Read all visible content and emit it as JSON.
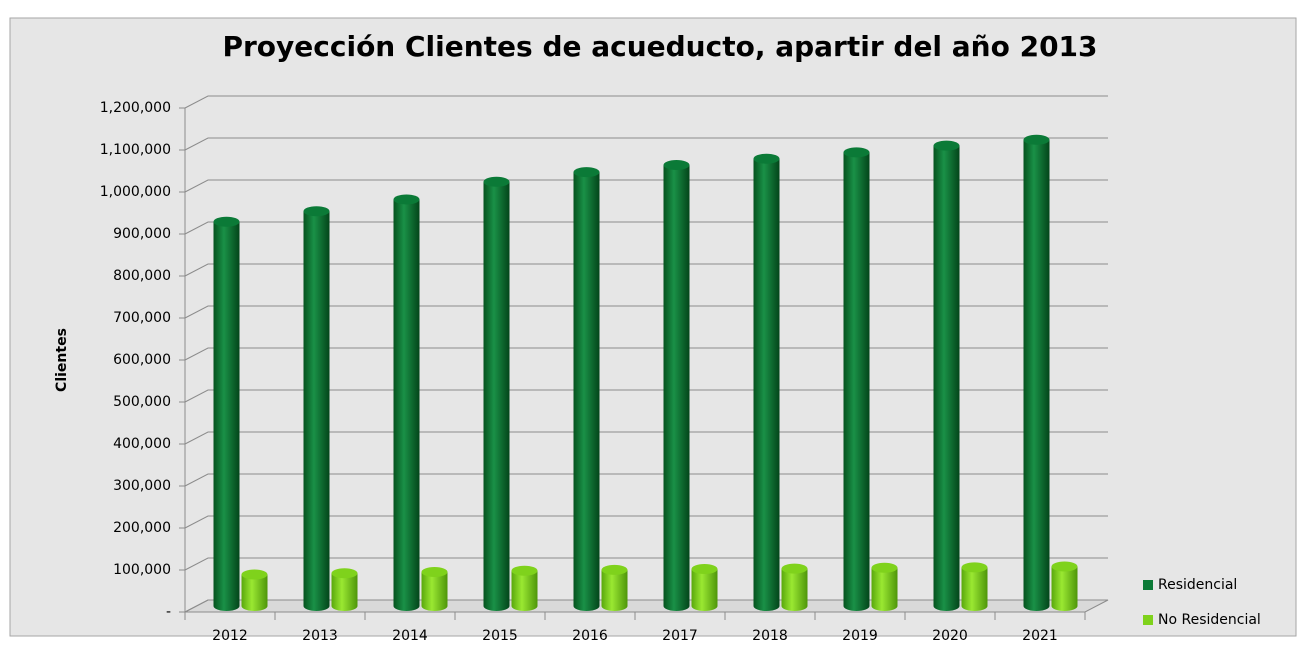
{
  "chart_data": {
    "type": "bar3d",
    "title": "Proyección Clientes de acueducto, apartir del año 2013",
    "ylabel": "Clientes",
    "categories": [
      "2012",
      "2013",
      "2014",
      "2015",
      "2016",
      "2017",
      "2018",
      "2019",
      "2020",
      "2021"
    ],
    "series": [
      {
        "name": "Residencial",
        "color": "#0b7a37",
        "values": [
          915000,
          940000,
          968000,
          1010000,
          1033000,
          1050000,
          1065000,
          1080000,
          1096000,
          1110000
        ]
      },
      {
        "name": "No Residencial",
        "color": "#7fd21c",
        "values": [
          75000,
          78000,
          81000,
          84000,
          86000,
          88000,
          89000,
          91000,
          92000,
          94000
        ]
      }
    ],
    "ylim": [
      0,
      1200000
    ],
    "yticks": [
      {
        "value": 0,
        "label": "-"
      },
      {
        "value": 100000,
        "label": "100,000"
      },
      {
        "value": 200000,
        "label": "200,000"
      },
      {
        "value": 300000,
        "label": "300,000"
      },
      {
        "value": 400000,
        "label": "400,000"
      },
      {
        "value": 500000,
        "label": "500,000"
      },
      {
        "value": 600000,
        "label": "600,000"
      },
      {
        "value": 700000,
        "label": "700,000"
      },
      {
        "value": 800000,
        "label": "800,000"
      },
      {
        "value": 900000,
        "label": "900,000"
      },
      {
        "value": 1000000,
        "label": "1,000,000"
      },
      {
        "value": 1100000,
        "label": "1,100,000"
      },
      {
        "value": 1200000,
        "label": "1,200,000"
      }
    ],
    "grid": true,
    "legend": "right"
  }
}
